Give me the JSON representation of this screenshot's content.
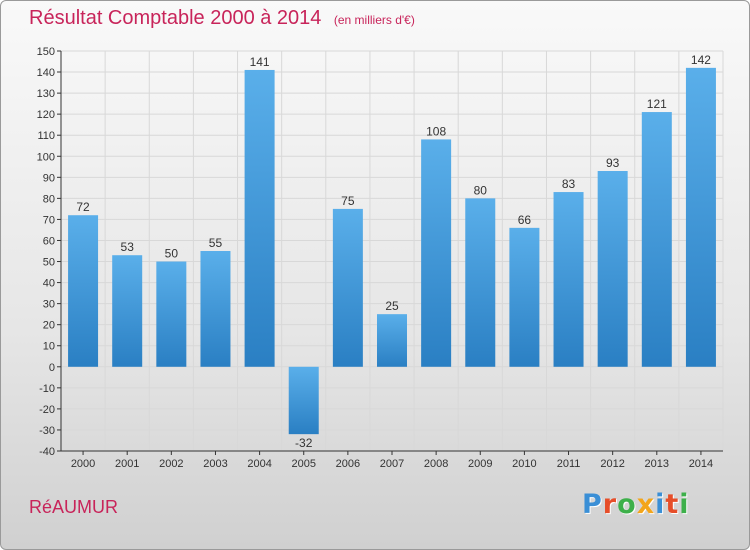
{
  "header": {
    "title": "Résultat Comptable 2000 à 2014",
    "subtitle": "(en milliers d'€)"
  },
  "footer": {
    "city": "RéAUMUR",
    "logo_letters": [
      "P",
      "r",
      "o",
      "x",
      "i",
      "t",
      "i"
    ],
    "logo_colors": [
      "#3a8fd6",
      "#e64e29",
      "#3db04a",
      "#f3a51a",
      "#3a8fd6",
      "#e64e29",
      "#3db04a"
    ]
  },
  "colors": {
    "bar_top": "#5aafea",
    "bar_bottom": "#2a7fc3",
    "grid": "#d8d8d8",
    "axis": "#333333"
  },
  "chart_data": {
    "type": "bar",
    "title": "Résultat Comptable 2000 à 2014",
    "unit_label": "(en milliers d'€)",
    "xlabel": "",
    "ylabel": "",
    "categories": [
      "2000",
      "2001",
      "2002",
      "2003",
      "2004",
      "2005",
      "2006",
      "2007",
      "2008",
      "2009",
      "2010",
      "2011",
      "2012",
      "2013",
      "2014"
    ],
    "values": [
      72,
      53,
      50,
      55,
      141,
      -32,
      75,
      25,
      108,
      80,
      66,
      83,
      93,
      121,
      142
    ],
    "ylim": [
      -40,
      150
    ],
    "ytick_step": 10,
    "grid": true
  }
}
